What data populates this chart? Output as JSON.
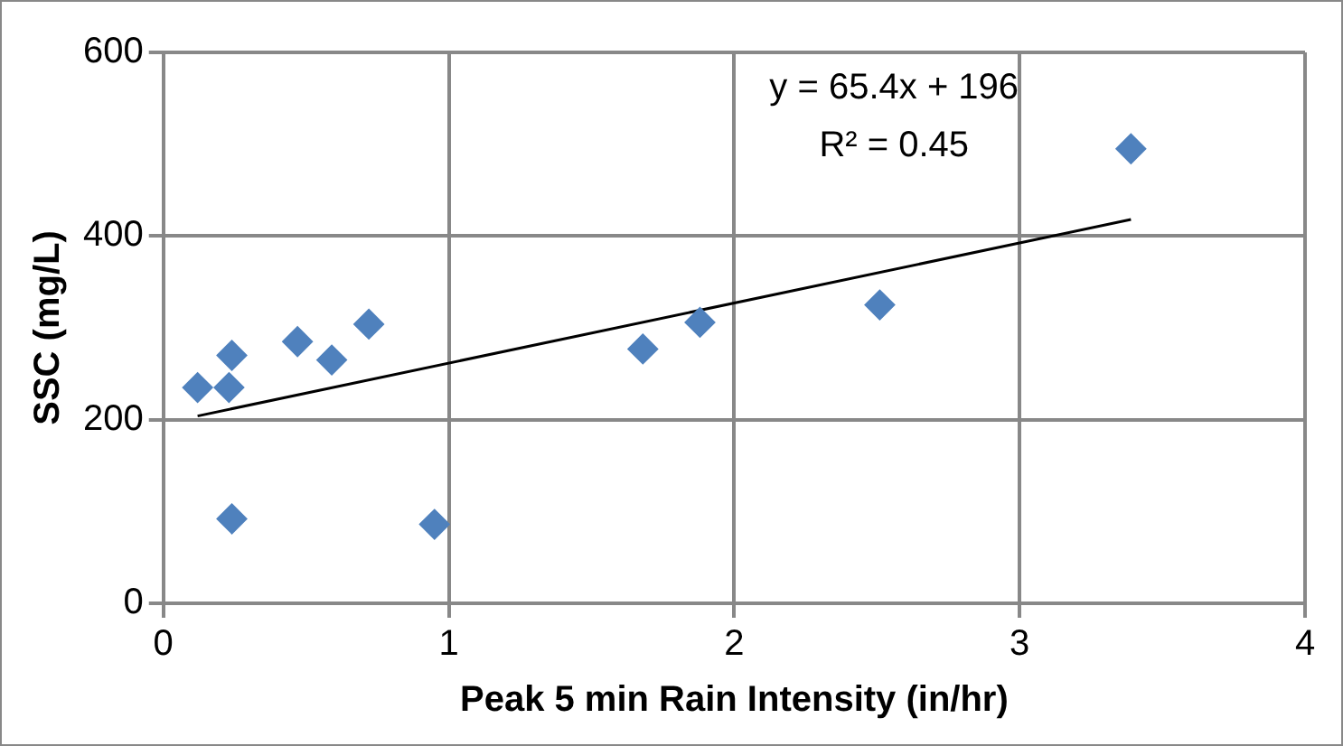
{
  "chart_data": {
    "type": "scatter",
    "xlabel": "Peak 5 min Rain Intensity (in/hr)",
    "ylabel": "SSC (mg/L)",
    "annotations": [
      "y = 65.4x + 196",
      "R² = 0.45"
    ],
    "series": [
      {
        "color": "#4f81bd",
        "marker": "diamond",
        "x": [
          0.12,
          0.24,
          0.23,
          0.47,
          0.59,
          0.72,
          0.24,
          0.95,
          1.68,
          1.88,
          2.51,
          3.39
        ],
        "values": [
          235,
          270,
          235,
          285,
          265,
          304,
          92,
          86,
          277,
          306,
          325,
          495
        ]
      },
      {
        "type": "line",
        "color": "#000000",
        "marker": "none",
        "x": [
          0.12,
          3.39
        ],
        "values": [
          204,
          418
        ]
      }
    ],
    "xlim": [
      0,
      4
    ],
    "xticks": [
      0,
      1,
      2,
      3,
      4
    ],
    "ylim": [
      0,
      600
    ],
    "yticks": [
      0,
      200,
      400,
      600
    ],
    "grid": true,
    "legend": false
  }
}
